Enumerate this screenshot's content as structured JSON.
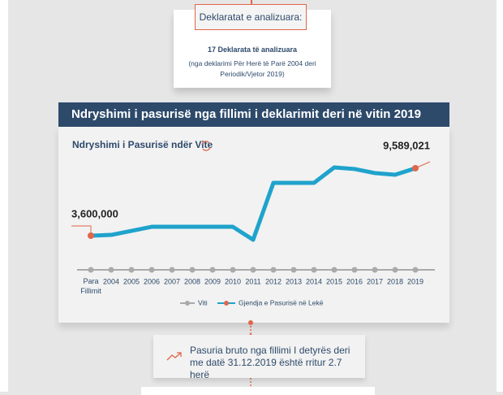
{
  "header": {
    "label": "Deklaratat e analizuara:",
    "count": "17 Deklarata të analizuara",
    "note": "(nga deklarimi Për Herë të Parë 2004 deri Periodik/Vjetor 2019)"
  },
  "banner": "Ndryshimi i pasurisë nga fillimi i deklarimit deri në vitin 2019",
  "chart_data": {
    "type": "line",
    "title": "Ndryshimi i Pasurisë ndër Vite",
    "categories": [
      "Para Fillimit",
      "2004",
      "2005",
      "2006",
      "2007",
      "2008",
      "2009",
      "2010",
      "2011",
      "2012",
      "2013",
      "2014",
      "2015",
      "2016",
      "2017",
      "2018",
      "2019"
    ],
    "axis_legend": "Viti",
    "axis_color": "#aaaaaa",
    "marker_color": "#e0664a",
    "series": [
      {
        "name": "Gjendja e Pasurisë në Lekë",
        "color": "#1fa3cc",
        "values": [
          3600000,
          3670000,
          4030000,
          4390000,
          4390000,
          4390000,
          4390000,
          4390000,
          3240000,
          8290000,
          8290000,
          8290000,
          9660000,
          9520000,
          9160000,
          9010000,
          9589021
        ],
        "value_labels": [
          "3,600,000",
          null,
          null,
          null,
          null,
          null,
          null,
          null,
          null,
          null,
          null,
          null,
          null,
          null,
          null,
          null,
          "9,589,021"
        ]
      }
    ]
  },
  "footer": {
    "text": "Pasuria bruto nga fillimi I detyrës deri me datë 31.12.2019 është rritur 2.7 herë"
  }
}
